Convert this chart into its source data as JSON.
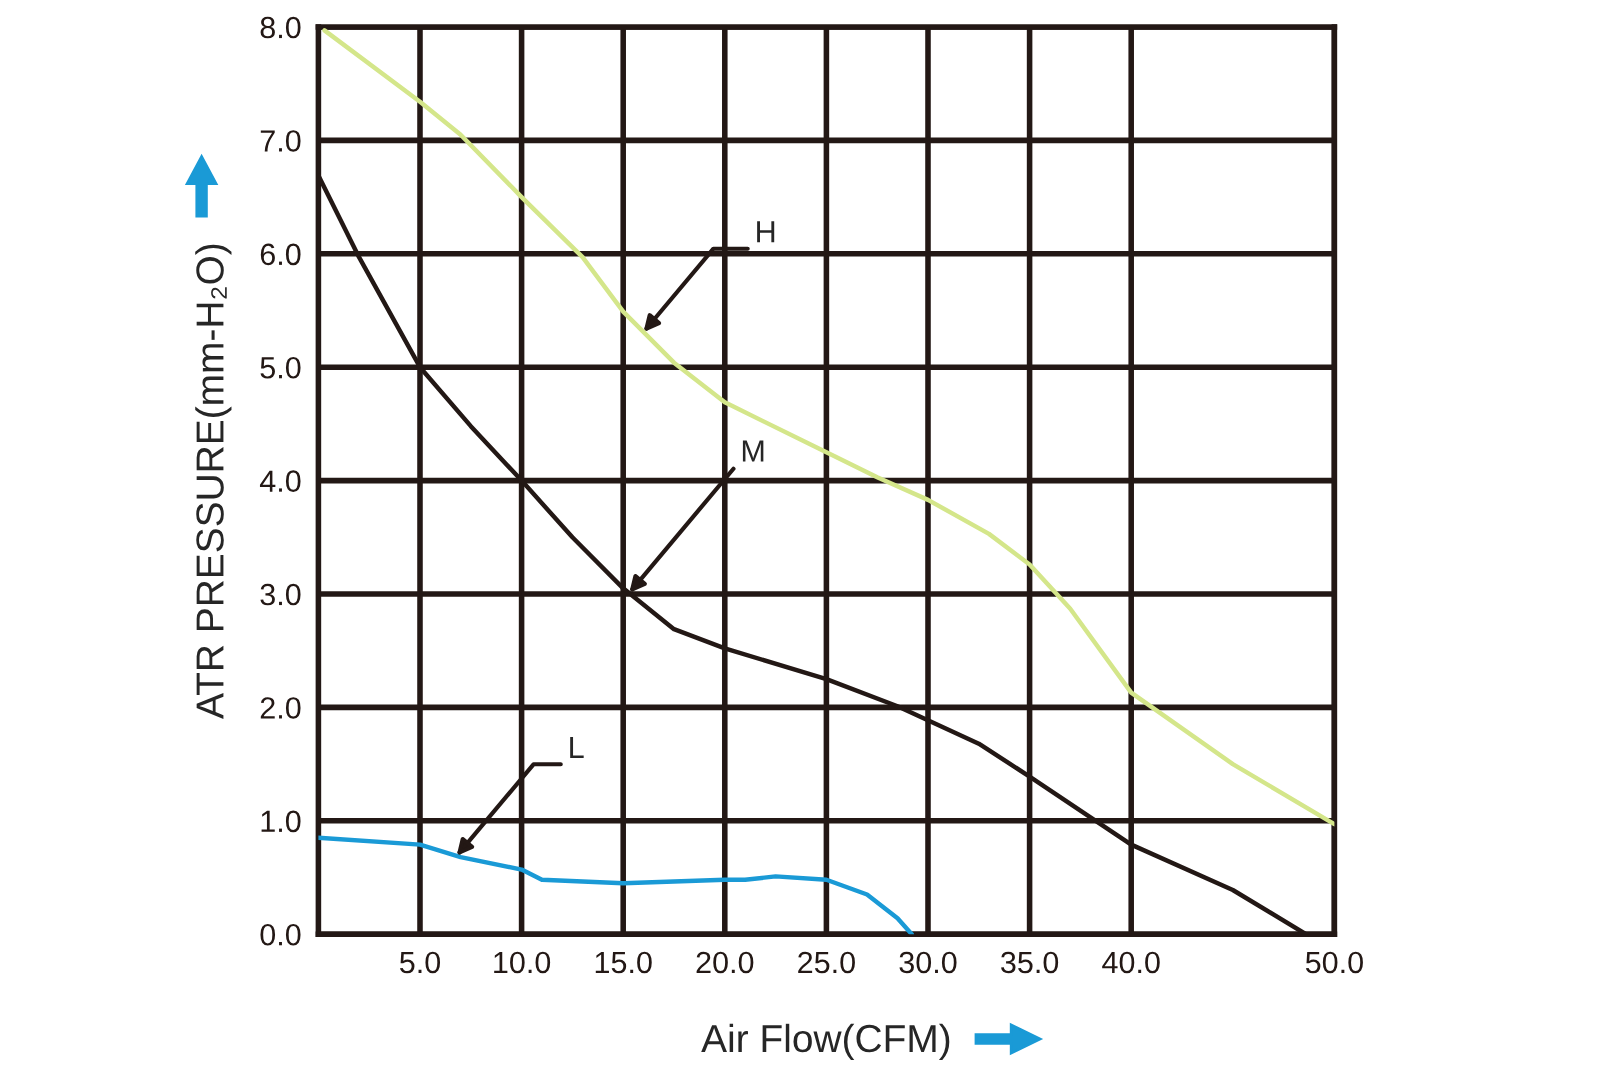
{
  "chart_data": {
    "type": "line",
    "xlabel": "Air Flow(CFM)",
    "ylabel": "ATR PRESSURE(mm-H₂O)",
    "xlim": [
      0,
      50
    ],
    "ylim": [
      0,
      8
    ],
    "xticks": [
      {
        "value": 5,
        "label": "5.0"
      },
      {
        "value": 10,
        "label": "10.0"
      },
      {
        "value": 15,
        "label": "15.0"
      },
      {
        "value": 20,
        "label": "20.0"
      },
      {
        "value": 25,
        "label": "25.0"
      },
      {
        "value": 30,
        "label": "30.0"
      },
      {
        "value": 35,
        "label": "35.0"
      },
      {
        "value": 40,
        "label": "40.0"
      },
      {
        "value": 50,
        "label": "50.0"
      }
    ],
    "yticks": [
      {
        "value": 0,
        "label": "0.0"
      },
      {
        "value": 1,
        "label": "1.0"
      },
      {
        "value": 2,
        "label": "2.0"
      },
      {
        "value": 3,
        "label": "3.0"
      },
      {
        "value": 4,
        "label": "4.0"
      },
      {
        "value": 5,
        "label": "5.0"
      },
      {
        "value": 6,
        "label": "6.0"
      },
      {
        "value": 7,
        "label": "7.0"
      },
      {
        "value": 8,
        "label": "8.0"
      }
    ],
    "grid": true,
    "marker": "none",
    "line_style": "solid",
    "series": [
      {
        "color": "#d4e68a",
        "x": [
          0.3,
          5,
          7,
          10,
          13,
          15,
          17.5,
          20,
          25,
          27.5,
          30,
          33,
          35,
          37,
          40,
          45,
          50
        ],
        "values": [
          7.97,
          7.34,
          7.05,
          6.5,
          5.97,
          5.49,
          5.04,
          4.69,
          4.25,
          4.03,
          3.83,
          3.53,
          3.26,
          2.87,
          2.13,
          1.5,
          0.97
        ]
      },
      {
        "color": "#231815",
        "x": [
          0,
          2,
          5,
          7.5,
          10,
          12.5,
          15,
          17.5,
          20,
          25,
          28.5,
          32.5,
          35,
          40,
          45,
          48.6
        ],
        "values": [
          6.69,
          5.97,
          5.0,
          4.48,
          4.0,
          3.5,
          3.05,
          2.69,
          2.52,
          2.25,
          2.01,
          1.68,
          1.39,
          0.79,
          0.39,
          0
        ]
      },
      {
        "color": "#1a9ad6",
        "x": [
          0,
          5,
          7,
          10,
          11,
          15,
          20,
          21,
          22.5,
          25,
          27,
          28.5,
          29.2
        ],
        "values": [
          0.85,
          0.79,
          0.68,
          0.57,
          0.48,
          0.45,
          0.48,
          0.48,
          0.51,
          0.48,
          0.35,
          0.14,
          0
        ]
      }
    ],
    "annotations": [
      {
        "text": "H",
        "x": 16,
        "y": 5.31
      },
      {
        "text": "M",
        "x": 15.3,
        "y": 3.01
      },
      {
        "text": "L",
        "x": 6.8,
        "y": 0.69
      }
    ]
  }
}
